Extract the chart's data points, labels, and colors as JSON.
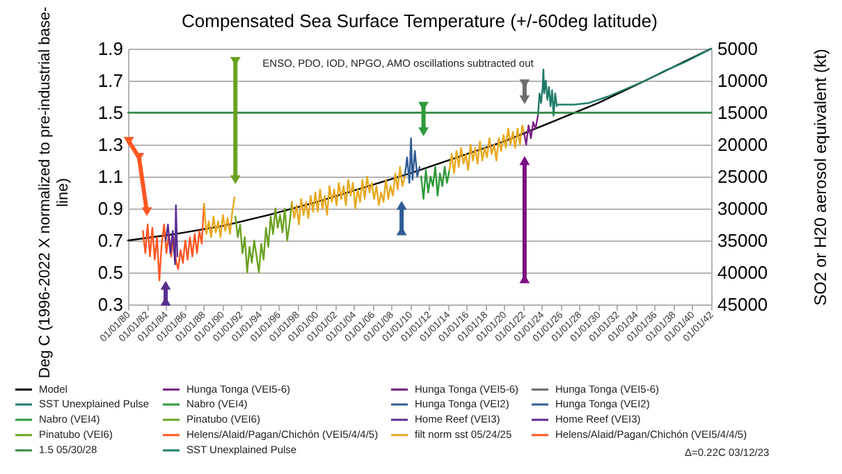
{
  "chart_data": {
    "type": "line",
    "title": "Compensated Sea Surface Temperature (+/-60deg latitude)",
    "ylabel": "Deg C (1996-2022 X normalized to pre-industrial base-line)",
    "y2label": "SO2 or H20 aerosol equivalent (kt)",
    "xlim": [
      "1980-01-01",
      "2042-01-01"
    ],
    "xticks": [
      {
        "value": "1980-01-01",
        "label": "01/01/80"
      },
      {
        "value": "1982-01-01",
        "label": "01/01/82"
      },
      {
        "value": "1984-01-01",
        "label": "01/01/84"
      },
      {
        "value": "1986-01-01",
        "label": "01/01/86"
      },
      {
        "value": "1988-01-01",
        "label": "01/01/88"
      },
      {
        "value": "1990-01-01",
        "label": "01/01/90"
      },
      {
        "value": "1992-01-01",
        "label": "01/01/92"
      },
      {
        "value": "1994-01-01",
        "label": "01/01/94"
      },
      {
        "value": "1996-01-01",
        "label": "01/01/96"
      },
      {
        "value": "1998-01-01",
        "label": "01/01/98"
      },
      {
        "value": "2000-01-01",
        "label": "01/01/00"
      },
      {
        "value": "2002-01-01",
        "label": "01/01/02"
      },
      {
        "value": "2004-01-01",
        "label": "01/01/04"
      },
      {
        "value": "2006-01-01",
        "label": "01/01/06"
      },
      {
        "value": "2008-01-01",
        "label": "01/01/08"
      },
      {
        "value": "2010-01-01",
        "label": "01/01/10"
      },
      {
        "value": "2012-01-01",
        "label": "01/01/12"
      },
      {
        "value": "2014-01-01",
        "label": "01/01/14"
      },
      {
        "value": "2016-01-01",
        "label": "01/01/16"
      },
      {
        "value": "2018-01-01",
        "label": "01/01/18"
      },
      {
        "value": "2020-01-01",
        "label": "01/01/20"
      },
      {
        "value": "2022-01-01",
        "label": "01/01/22"
      },
      {
        "value": "2024-01-01",
        "label": "01/01/24"
      },
      {
        "value": "2026-01-01",
        "label": "01/01/26"
      },
      {
        "value": "2028-01-01",
        "label": "01/01/28"
      },
      {
        "value": "2030-01-01",
        "label": "01/01/30"
      },
      {
        "value": "2032-01-01",
        "label": "01/01/32"
      },
      {
        "value": "2034-01-01",
        "label": "01/01/34"
      },
      {
        "value": "2036-01-01",
        "label": "01/01/36"
      },
      {
        "value": "2038-01-01",
        "label": "01/01/38"
      },
      {
        "value": "2040-01-01",
        "label": "01/01/40"
      },
      {
        "value": "2042-01-01",
        "label": "01/01/42"
      }
    ],
    "ylim": [
      0.3,
      1.9
    ],
    "yticks": [
      0.3,
      0.5,
      0.7,
      0.9,
      1.1,
      1.3,
      1.5,
      1.7,
      1.9
    ],
    "y2lim": [
      45000,
      5000
    ],
    "y2ticks": [
      5000,
      10000,
      15000,
      20000,
      25000,
      30000,
      35000,
      40000,
      45000
    ],
    "grid": "y",
    "legend": "bottom",
    "annotations": [
      "ENSO, PDO, IOD, NPGO, AMO oscillations subtracted out",
      "Δ=0.22C 03/12/23"
    ],
    "series": [
      {
        "name": "Model",
        "color": "#000000",
        "x": [
          "1980-01",
          "1985-01",
          "1990-01",
          "1995-01",
          "2000-01",
          "2005-01",
          "2010-01",
          "2015-01",
          "2020-01",
          "2025-01",
          "2030-01",
          "2035-01",
          "2042-01"
        ],
        "values": [
          0.7,
          0.74,
          0.79,
          0.86,
          0.94,
          1.03,
          1.12,
          1.22,
          1.32,
          1.44,
          1.56,
          1.7,
          1.9
        ]
      },
      {
        "name": "SST Unexplained Pulse",
        "color": "#207a68",
        "x": [
          "2023-08",
          "2023-10",
          "2023-12",
          "2024-02",
          "2024-03",
          "2024-04",
          "2024-06",
          "2024-08",
          "2024-10",
          "2024-12",
          "2025-02",
          "2025-04",
          "2025-06",
          "2025-08"
        ],
        "values": [
          1.48,
          1.62,
          1.56,
          1.66,
          1.77,
          1.62,
          1.7,
          1.58,
          1.66,
          1.54,
          1.64,
          1.48,
          1.62,
          1.54
        ]
      },
      {
        "name": "Nabro (VEI4)",
        "color": "#2e9a3a",
        "x": [
          "2011-03",
          "2011-06",
          "2011-09",
          "2011-12",
          "2012-03",
          "2012-06",
          "2012-09",
          "2012-12",
          "2013-03",
          "2013-06",
          "2013-09",
          "2013-12",
          "2014-03"
        ],
        "values": [
          1.1,
          0.96,
          1.14,
          1.0,
          1.1,
          1.04,
          1.16,
          0.98,
          1.12,
          1.04,
          1.16,
          1.06,
          1.14
        ]
      },
      {
        "name": "Pinatubo (VEI6)",
        "color": "#6aa222",
        "x": [
          "1991-06",
          "1991-09",
          "1991-12",
          "1992-03",
          "1992-06",
          "1992-09",
          "1992-12",
          "1993-03",
          "1993-06",
          "1993-09",
          "1993-12",
          "1994-03",
          "1994-06",
          "1994-09",
          "1994-12",
          "1995-03",
          "1995-06",
          "1995-09",
          "1995-12",
          "1996-03",
          "1996-06",
          "1996-09",
          "1996-12",
          "1997-03",
          "1997-06"
        ],
        "values": [
          0.85,
          0.72,
          0.8,
          0.62,
          0.72,
          0.5,
          0.66,
          0.56,
          0.7,
          0.6,
          0.5,
          0.68,
          0.58,
          0.78,
          0.66,
          0.85,
          0.74,
          0.9,
          0.78,
          0.86,
          0.75,
          0.9,
          0.7,
          0.8,
          0.94
        ]
      },
      {
        "name": "Helens/Alaid/Pagan/Chichón (VEI5/4/4/5)",
        "color": "#ff5722",
        "x": [
          "1981-08",
          "1981-11",
          "1982-02",
          "1982-05",
          "1982-08",
          "1982-11",
          "1983-02",
          "1983-05",
          "1983-08",
          "1983-11",
          "1984-02",
          "1984-05",
          "1984-08",
          "1984-11",
          "1985-02",
          "1985-05",
          "1985-08",
          "1985-11",
          "1986-02",
          "1986-05",
          "1986-08",
          "1986-11",
          "1987-02",
          "1987-05",
          "1987-08",
          "1987-11",
          "1988-02"
        ],
        "values": [
          0.76,
          0.62,
          0.8,
          0.6,
          0.78,
          0.58,
          0.72,
          0.45,
          0.68,
          0.8,
          0.62,
          0.74,
          0.6,
          0.72,
          0.58,
          0.52,
          0.64,
          0.56,
          0.7,
          0.58,
          0.72,
          0.6,
          0.74,
          0.62,
          0.76,
          0.68,
          0.93
        ]
      },
      {
        "name": "Hunga Tonga (VEI5-6)",
        "color": "#7b1f86",
        "x": [
          "2022-02",
          "2022-05",
          "2022-08",
          "2022-11",
          "2023-02",
          "2023-05",
          "2023-08"
        ],
        "values": [
          1.38,
          1.3,
          1.42,
          1.34,
          1.44,
          1.4,
          1.48
        ]
      },
      {
        "name": "Nabro (VEI4)",
        "color": "#2e9a3a",
        "axis": "y2",
        "marker": "triangle",
        "x": [
          "2011-06",
          "2011-06"
        ],
        "values": [
          14000,
          18000
        ]
      },
      {
        "name": "Pinatubo (VEI6)",
        "color": "#6aa222",
        "axis": "y2",
        "marker": "triangle",
        "x": [
          "1991-06",
          "1991-06"
        ],
        "values": [
          7000,
          25500
        ]
      },
      {
        "name": "Helens/Alaid/Pagan/Chichón (VEI5/4/4/5)",
        "color": "#ff5722",
        "axis": "y2",
        "marker": "triangle",
        "x": [
          "1980-02",
          "1981-03",
          "1982-01"
        ],
        "values": [
          19500,
          22000,
          30500
        ]
      },
      {
        "name": "1.5 05/30/28",
        "color": "#2e8b3e",
        "x": [
          "1980-01",
          "2042-01"
        ],
        "values": [
          1.5,
          1.5
        ]
      },
      {
        "name": "Hunga Tonga (VEI5-6)",
        "color": "#7b1084",
        "axis": "y2",
        "marker": "triangle",
        "x": [
          "2022-03",
          "2022-03"
        ],
        "values": [
          41000,
          22500
        ]
      },
      {
        "name": "Hunga Tonga (VEI2)",
        "color": "#2f5c96",
        "x": [
          "2009-06",
          "2009-09",
          "2009-12",
          "2010-02",
          "2010-04",
          "2010-07",
          "2010-10",
          "2011-01"
        ],
        "values": [
          1.1,
          1.22,
          1.06,
          1.34,
          1.08,
          1.26,
          1.1,
          1.16
        ]
      },
      {
        "name": "Home Reef (VEI3)",
        "color": "#5a2d91",
        "x": [
          "1984-01",
          "1984-04",
          "1984-07",
          "1984-10",
          "1985-01",
          "1985-02",
          "1985-04"
        ],
        "values": [
          0.7,
          0.8,
          0.62,
          0.76,
          0.55,
          0.92,
          0.6
        ]
      },
      {
        "name": "filt norm sst 05/24/25",
        "color": "#e8a820",
        "x": [
          "1988-02",
          "1988-05",
          "1988-08",
          "1988-11",
          "1989-02",
          "1989-05",
          "1989-08",
          "1989-11",
          "1990-02",
          "1990-05",
          "1990-08",
          "1990-11",
          "1991-02",
          "1991-05",
          "1991-06",
          "1997-06",
          "1997-09",
          "1997-12",
          "1998-03",
          "1998-06",
          "1998-09",
          "1998-12",
          "1999-03",
          "1999-06",
          "1999-09",
          "1999-12",
          "2000-03",
          "2000-06",
          "2000-09",
          "2000-12",
          "2001-03",
          "2001-06",
          "2001-09",
          "2001-12",
          "2002-03",
          "2002-06",
          "2002-09",
          "2002-12",
          "2003-03",
          "2003-06",
          "2003-09",
          "2003-12",
          "2004-03",
          "2004-06",
          "2004-09",
          "2004-12",
          "2005-03",
          "2005-06",
          "2005-09",
          "2005-12",
          "2006-03",
          "2006-06",
          "2006-09",
          "2006-12",
          "2007-03",
          "2007-06",
          "2007-09",
          "2007-12",
          "2008-03",
          "2008-06",
          "2008-09",
          "2008-12",
          "2009-03",
          "2009-06",
          "2011-04",
          "2014-03",
          "2014-06",
          "2014-09",
          "2014-12",
          "2015-03",
          "2015-06",
          "2015-09",
          "2015-12",
          "2016-03",
          "2016-06",
          "2016-09",
          "2016-12",
          "2017-03",
          "2017-06",
          "2017-09",
          "2017-12",
          "2018-03",
          "2018-06",
          "2018-09",
          "2018-12",
          "2019-03",
          "2019-06",
          "2019-09",
          "2019-12",
          "2020-03",
          "2020-06",
          "2020-09",
          "2020-12",
          "2021-03",
          "2021-06",
          "2021-09",
          "2021-12",
          "2022-02"
        ],
        "values": [
          0.93,
          0.74,
          0.82,
          0.72,
          0.85,
          0.75,
          0.82,
          0.72,
          0.86,
          0.76,
          0.84,
          0.74,
          0.88,
          0.97,
          null,
          0.94,
          0.84,
          0.92,
          0.8,
          0.96,
          0.86,
          0.94,
          0.84,
          0.98,
          0.88,
          1.0,
          0.88,
          1.02,
          0.9,
          0.98,
          0.86,
          1.04,
          0.94,
          1.02,
          0.92,
          1.06,
          0.96,
          1.04,
          0.92,
          1.08,
          0.98,
          1.06,
          0.9,
          1.02,
          0.94,
          1.08,
          0.96,
          1.1,
          1.0,
          1.06,
          0.96,
          1.04,
          0.92,
          1.0,
          0.94,
          1.08,
          0.96,
          1.04,
          0.98,
          1.12,
          1.02,
          1.16,
          1.04,
          1.1,
          null,
          1.14,
          1.24,
          1.12,
          1.26,
          1.16,
          1.28,
          1.18,
          1.24,
          1.14,
          1.3,
          1.2,
          1.28,
          1.18,
          1.32,
          1.2,
          1.28,
          1.22,
          1.34,
          1.24,
          1.3,
          1.2,
          1.34,
          1.26,
          1.36,
          1.28,
          1.4,
          1.3,
          1.38,
          1.28,
          1.4,
          1.3,
          1.42,
          1.38
        ]
      },
      {
        "name": "SST Unexplained Pulse",
        "color": "#1f7f6a",
        "x": [
          "2025-08",
          "2027-06",
          "2029-01",
          "2031-01",
          "2033-01",
          "2035-01",
          "2037-01",
          "2039-01",
          "2042-01"
        ],
        "values": [
          1.55,
          1.55,
          1.56,
          1.6,
          1.65,
          1.7,
          1.76,
          1.81,
          1.9
        ]
      },
      {
        "name": "Hunga Tonga (VEI5-6)",
        "color": "#6e6e6e",
        "axis": "y2",
        "marker": "triangle",
        "x": [
          "2022-03",
          "2022-03"
        ],
        "values": [
          10500,
          13000
        ]
      },
      {
        "name": "Hunga Tonga (VEI2)",
        "color": "#2f5c96",
        "axis": "y2",
        "marker": "triangle",
        "x": [
          "2009-02",
          "2009-02"
        ],
        "values": [
          33500,
          29500
        ]
      },
      {
        "name": "Home Reef (VEI3)",
        "color": "#5a2d91",
        "axis": "y2",
        "marker": "triangle",
        "x": [
          "1984-01",
          "1984-01"
        ],
        "values": [
          44500,
          42000
        ]
      }
    ]
  }
}
